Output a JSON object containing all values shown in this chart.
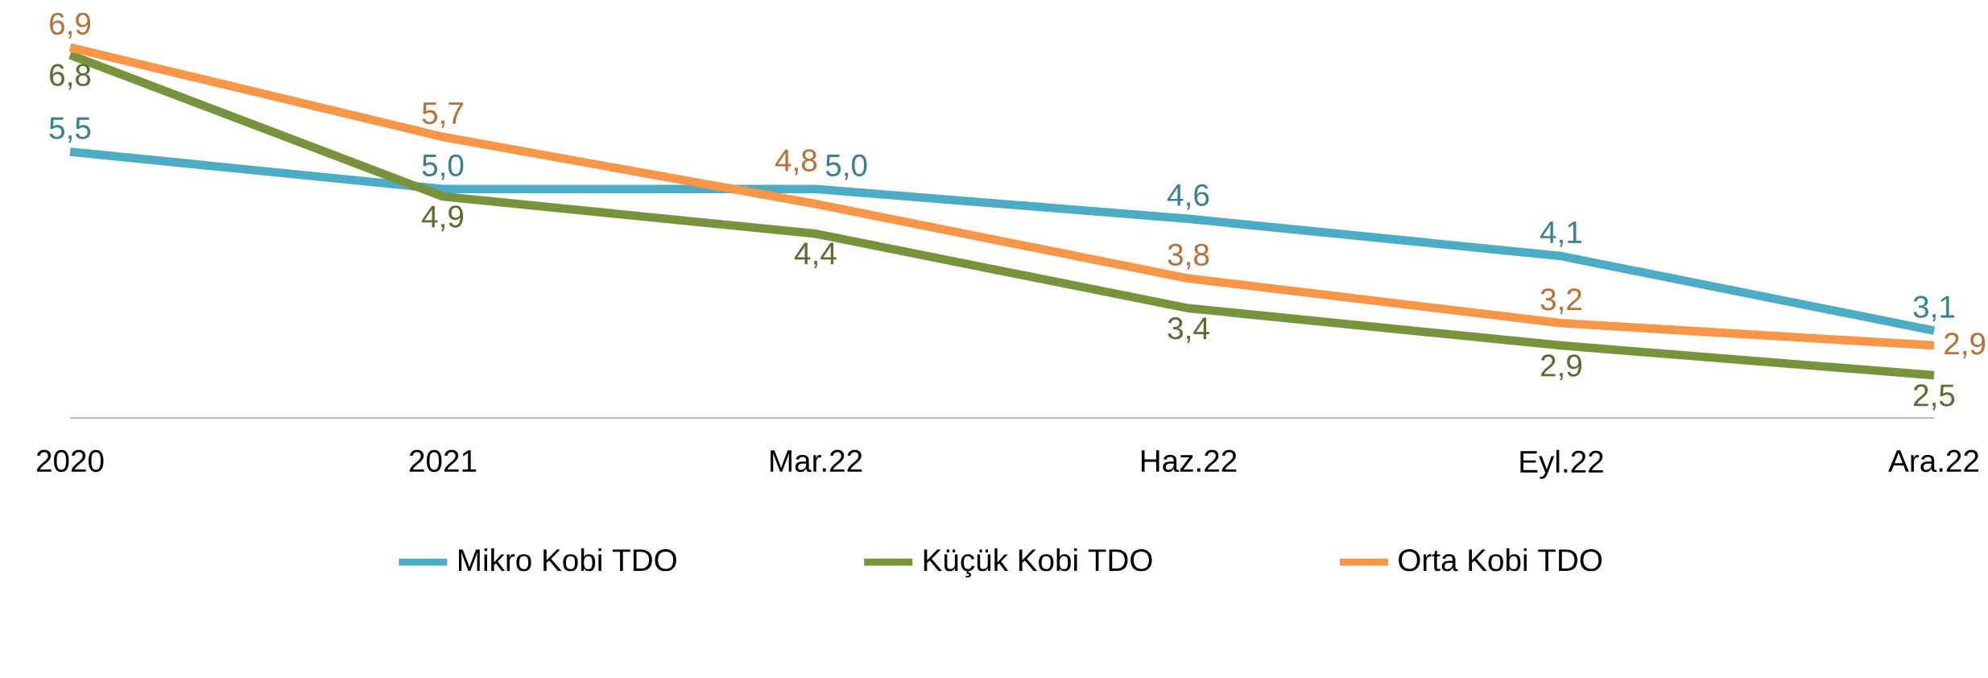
{
  "chart_data": {
    "type": "line",
    "categories": [
      "2020",
      "2021",
      "Mar.22",
      "Haz.22",
      "Eyl.22",
      "Ara.22"
    ],
    "legend": "bottom",
    "marker": "none",
    "line_style": "solid",
    "series": [
      {
        "name": "Mikro Kobi TDO",
        "color": "#4bacc6",
        "values": [
          5.5,
          5.0,
          5.0,
          4.6,
          4.1,
          3.1
        ],
        "value_labels": [
          "5,5",
          "5,0",
          "5,0",
          "4,6",
          "4,1",
          "3,1"
        ]
      },
      {
        "name": "Küçük Kobi TDO",
        "color": "#77933c",
        "values": [
          6.8,
          4.9,
          4.4,
          3.4,
          2.9,
          2.5
        ],
        "value_labels": [
          "6,8",
          "4,9",
          "4,4",
          "3,4",
          "2,9",
          "2,5"
        ]
      },
      {
        "name": "Orta Kobi TDO",
        "color": "#f79646",
        "values": [
          6.9,
          5.7,
          4.8,
          3.8,
          3.2,
          2.9
        ],
        "value_labels": [
          "6,9",
          "5,7",
          "4,8",
          "3,8",
          "3,2",
          "2,9"
        ]
      }
    ]
  }
}
